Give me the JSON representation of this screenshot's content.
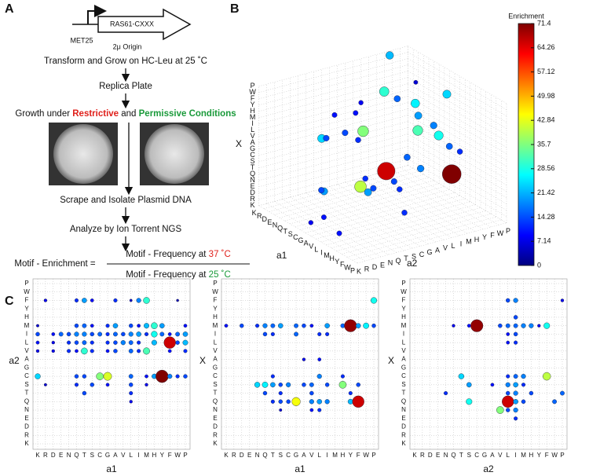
{
  "panel_a": {
    "label": "A",
    "promoter": "MET25",
    "gene": "RAS61-CXXX",
    "origin": "2μ Origin",
    "step1": "Transform and Grow on HC-Leu at 25 ˚C",
    "step2": "Replica Plate",
    "growth": [
      "Growth under ",
      "Restrictive",
      " and ",
      "Permissive Conditions"
    ],
    "step3": "Scrape and Isolate Plasmid DNA",
    "step4": "Analyze by Ion Torrent NGS",
    "equation": {
      "lhs": "Motif - Enrichment =",
      "numerator": [
        "Motif - Frequency at ",
        "37 ˚C"
      ],
      "denominator": [
        "Motif - Frequency at ",
        "25 ˚C"
      ]
    }
  },
  "chart_data": [
    {
      "type": "bubble3d",
      "label": "B",
      "categories": [
        "K",
        "R",
        "D",
        "E",
        "N",
        "Q",
        "T",
        "S",
        "C",
        "G",
        "A",
        "V",
        "L",
        "I",
        "M",
        "H",
        "Y",
        "F",
        "W",
        "P"
      ],
      "axis_labels": {
        "a1": "a1",
        "a2": "a2",
        "x": "X"
      },
      "points": [
        [
          "Y",
          "M",
          "C",
          71.4
        ],
        [
          "F",
          "Q",
          "L",
          66
        ],
        [
          "G",
          "S",
          "Q",
          40
        ],
        [
          "T",
          "L",
          "F",
          30
        ],
        [
          "M",
          "V",
          "H",
          32
        ],
        [
          "C",
          "C",
          "I",
          36
        ],
        [
          "K",
          "C",
          "C",
          24
        ],
        [
          "H",
          "I",
          "M",
          28
        ],
        [
          "Q",
          "F",
          "V",
          20
        ],
        [
          "A",
          "M",
          "T",
          18
        ],
        [
          "S",
          "I",
          "Y",
          16
        ],
        [
          "L",
          "L",
          "W",
          26
        ],
        [
          "I",
          "T",
          "S",
          14
        ],
        [
          "N",
          "A",
          "G",
          12
        ],
        [
          "E",
          "G",
          "A",
          14
        ],
        [
          "D",
          "V",
          "L",
          10
        ],
        [
          "V",
          "H",
          "I",
          18
        ],
        [
          "R",
          "Y",
          "P",
          22
        ],
        [
          "W",
          "S",
          "M",
          16
        ],
        [
          "P",
          "T",
          "T",
          12
        ],
        [
          "Q",
          "Q",
          "E",
          20
        ],
        [
          "T",
          "N",
          "N",
          14
        ],
        [
          "S",
          "D",
          "K",
          8
        ],
        [
          "C",
          "E",
          "R",
          10
        ],
        [
          "G",
          "W",
          "Y",
          24
        ],
        [
          "L",
          "A",
          "Q",
          12
        ],
        [
          "I",
          "K",
          "F",
          14
        ],
        [
          "M",
          "R",
          "D",
          10
        ],
        [
          "A",
          "P",
          "S",
          12
        ],
        [
          "V",
          "F",
          "G",
          16
        ],
        [
          "H",
          "N",
          "C",
          20
        ],
        [
          "F",
          "T",
          "A",
          14
        ],
        [
          "Y",
          "E",
          "V",
          12
        ],
        [
          "N",
          "S",
          "M",
          10
        ],
        [
          "K",
          "I",
          "L",
          8
        ],
        [
          "E",
          "W",
          "H",
          6
        ]
      ],
      "colorbar": {
        "title": "Enrichment",
        "lim": [
          0,
          71.4
        ],
        "ticks": [
          0,
          7.14,
          14.28,
          21.42,
          28.56,
          35.7,
          42.84,
          49.98,
          57.12,
          64.26,
          71.4
        ]
      }
    },
    {
      "type": "bubble",
      "label": "C",
      "x_label": "a1",
      "y_label": "a2",
      "categories": [
        "K",
        "R",
        "D",
        "E",
        "N",
        "Q",
        "T",
        "S",
        "C",
        "G",
        "A",
        "V",
        "L",
        "I",
        "M",
        "H",
        "Y",
        "F",
        "W",
        "P"
      ],
      "points": [
        [
          "R",
          "F",
          8
        ],
        [
          "Q",
          "F",
          12
        ],
        [
          "T",
          "F",
          20
        ],
        [
          "S",
          "F",
          9
        ],
        [
          "A",
          "F",
          12
        ],
        [
          "L",
          "F",
          5
        ],
        [
          "I",
          "F",
          18
        ],
        [
          "M",
          "F",
          30
        ],
        [
          "W",
          "F",
          4
        ],
        [
          "K",
          "M",
          6
        ],
        [
          "Q",
          "M",
          14
        ],
        [
          "T",
          "M",
          16
        ],
        [
          "S",
          "M",
          10
        ],
        [
          "G",
          "M",
          12
        ],
        [
          "A",
          "M",
          20
        ],
        [
          "L",
          "M",
          14
        ],
        [
          "I",
          "M",
          10
        ],
        [
          "M",
          "M",
          22
        ],
        [
          "H",
          "M",
          30
        ],
        [
          "Y",
          "M",
          20
        ],
        [
          "P",
          "M",
          10
        ],
        [
          "K",
          "I",
          14
        ],
        [
          "D",
          "I",
          10
        ],
        [
          "E",
          "I",
          16
        ],
        [
          "N",
          "I",
          14
        ],
        [
          "Q",
          "I",
          18
        ],
        [
          "T",
          "I",
          18
        ],
        [
          "S",
          "I",
          14
        ],
        [
          "C",
          "I",
          16
        ],
        [
          "G",
          "I",
          12
        ],
        [
          "A",
          "I",
          16
        ],
        [
          "V",
          "I",
          14
        ],
        [
          "L",
          "I",
          18
        ],
        [
          "I",
          "I",
          20
        ],
        [
          "M",
          "I",
          12
        ],
        [
          "H",
          "I",
          28
        ],
        [
          "Y",
          "I",
          16
        ],
        [
          "F",
          "I",
          10
        ],
        [
          "W",
          "I",
          16
        ],
        [
          "P",
          "I",
          20
        ],
        [
          "K",
          "L",
          10
        ],
        [
          "D",
          "L",
          8
        ],
        [
          "N",
          "L",
          12
        ],
        [
          "Q",
          "L",
          14
        ],
        [
          "T",
          "L",
          16
        ],
        [
          "S",
          "L",
          12
        ],
        [
          "G",
          "L",
          12
        ],
        [
          "A",
          "L",
          14
        ],
        [
          "V",
          "L",
          18
        ],
        [
          "L",
          "L",
          16
        ],
        [
          "I",
          "L",
          12
        ],
        [
          "H",
          "L",
          22
        ],
        [
          "F",
          "L",
          66
        ],
        [
          "W",
          "L",
          14
        ],
        [
          "P",
          "L",
          22
        ],
        [
          "K",
          "V",
          8
        ],
        [
          "D",
          "V",
          8
        ],
        [
          "N",
          "V",
          12
        ],
        [
          "Q",
          "V",
          10
        ],
        [
          "T",
          "V",
          30
        ],
        [
          "S",
          "V",
          12
        ],
        [
          "G",
          "V",
          10
        ],
        [
          "A",
          "V",
          14
        ],
        [
          "L",
          "V",
          16
        ],
        [
          "I",
          "V",
          12
        ],
        [
          "M",
          "V",
          32
        ],
        [
          "F",
          "V",
          10
        ],
        [
          "P",
          "V",
          12
        ],
        [
          "K",
          "C",
          24
        ],
        [
          "Q",
          "C",
          14
        ],
        [
          "T",
          "C",
          14
        ],
        [
          "C",
          "C",
          36
        ],
        [
          "G",
          "C",
          42
        ],
        [
          "L",
          "C",
          16
        ],
        [
          "M",
          "C",
          10
        ],
        [
          "H",
          "C",
          20
        ],
        [
          "Y",
          "C",
          71.4
        ],
        [
          "F",
          "C",
          18
        ],
        [
          "W",
          "C",
          12
        ],
        [
          "P",
          "C",
          14
        ],
        [
          "R",
          "S",
          6
        ],
        [
          "Q",
          "S",
          12
        ],
        [
          "S",
          "S",
          14
        ],
        [
          "G",
          "S",
          10
        ],
        [
          "L",
          "S",
          14
        ],
        [
          "M",
          "S",
          8
        ],
        [
          "T",
          "T",
          14
        ],
        [
          "L",
          "T",
          12
        ],
        [
          "L",
          "Q",
          8
        ]
      ]
    },
    {
      "type": "bubble",
      "x_label": "a1",
      "y_label": "X",
      "categories": [
        "K",
        "R",
        "D",
        "E",
        "N",
        "Q",
        "T",
        "S",
        "C",
        "G",
        "A",
        "V",
        "L",
        "I",
        "M",
        "H",
        "Y",
        "F",
        "W",
        "P"
      ],
      "points": [
        [
          "P",
          "F",
          28
        ],
        [
          "K",
          "M",
          10
        ],
        [
          "D",
          "M",
          14
        ],
        [
          "N",
          "M",
          12
        ],
        [
          "Q",
          "M",
          18
        ],
        [
          "T",
          "M",
          16
        ],
        [
          "S",
          "M",
          20
        ],
        [
          "G",
          "M",
          16
        ],
        [
          "A",
          "M",
          14
        ],
        [
          "V",
          "M",
          10
        ],
        [
          "I",
          "M",
          20
        ],
        [
          "H",
          "M",
          16
        ],
        [
          "Y",
          "M",
          70
        ],
        [
          "F",
          "M",
          20
        ],
        [
          "W",
          "M",
          26
        ],
        [
          "P",
          "M",
          14
        ],
        [
          "Q",
          "I",
          14
        ],
        [
          "T",
          "I",
          12
        ],
        [
          "G",
          "I",
          16
        ],
        [
          "L",
          "I",
          12
        ],
        [
          "I",
          "I",
          12
        ],
        [
          "A",
          "A",
          8
        ],
        [
          "L",
          "A",
          10
        ],
        [
          "T",
          "C",
          12
        ],
        [
          "L",
          "C",
          18
        ],
        [
          "H",
          "C",
          12
        ],
        [
          "N",
          "S",
          24
        ],
        [
          "Q",
          "S",
          26
        ],
        [
          "T",
          "S",
          20
        ],
        [
          "S",
          "S",
          14
        ],
        [
          "C",
          "S",
          18
        ],
        [
          "A",
          "S",
          14
        ],
        [
          "V",
          "S",
          16
        ],
        [
          "I",
          "S",
          14
        ],
        [
          "H",
          "S",
          36
        ],
        [
          "F",
          "S",
          14
        ],
        [
          "Q",
          "T",
          14
        ],
        [
          "S",
          "T",
          12
        ],
        [
          "V",
          "T",
          14
        ],
        [
          "Y",
          "T",
          12
        ],
        [
          "T",
          "Q",
          12
        ],
        [
          "S",
          "Q",
          14
        ],
        [
          "C",
          "Q",
          14
        ],
        [
          "G",
          "Q",
          44
        ],
        [
          "V",
          "Q",
          18
        ],
        [
          "L",
          "Q",
          20
        ],
        [
          "I",
          "Q",
          18
        ],
        [
          "Y",
          "Q",
          22
        ],
        [
          "F",
          "Q",
          66
        ],
        [
          "S",
          "N",
          6
        ],
        [
          "V",
          "N",
          10
        ],
        [
          "L",
          "N",
          12
        ]
      ]
    },
    {
      "type": "bubble",
      "x_label": "a2",
      "y_label": "X",
      "categories": [
        "K",
        "R",
        "D",
        "E",
        "N",
        "Q",
        "T",
        "S",
        "C",
        "G",
        "A",
        "V",
        "L",
        "I",
        "M",
        "H",
        "Y",
        "F",
        "W",
        "P"
      ],
      "points": [
        [
          "L",
          "F",
          14
        ],
        [
          "I",
          "F",
          18
        ],
        [
          "P",
          "F",
          8
        ],
        [
          "I",
          "H",
          14
        ],
        [
          "Q",
          "M",
          8
        ],
        [
          "S",
          "M",
          10
        ],
        [
          "C",
          "M",
          70
        ],
        [
          "V",
          "M",
          14
        ],
        [
          "L",
          "M",
          16
        ],
        [
          "I",
          "M",
          16
        ],
        [
          "M",
          "M",
          18
        ],
        [
          "H",
          "M",
          18
        ],
        [
          "Y",
          "M",
          8
        ],
        [
          "F",
          "M",
          28
        ],
        [
          "L",
          "I",
          10
        ],
        [
          "I",
          "I",
          14
        ],
        [
          "L",
          "L",
          10
        ],
        [
          "I",
          "L",
          12
        ],
        [
          "T",
          "C",
          24
        ],
        [
          "L",
          "C",
          12
        ],
        [
          "I",
          "C",
          16
        ],
        [
          "M",
          "C",
          18
        ],
        [
          "F",
          "C",
          40
        ],
        [
          "S",
          "S",
          20
        ],
        [
          "A",
          "S",
          10
        ],
        [
          "L",
          "S",
          18
        ],
        [
          "I",
          "S",
          20
        ],
        [
          "M",
          "S",
          12
        ],
        [
          "N",
          "T",
          12
        ],
        [
          "L",
          "T",
          14
        ],
        [
          "I",
          "T",
          18
        ],
        [
          "H",
          "T",
          14
        ],
        [
          "P",
          "T",
          16
        ],
        [
          "S",
          "Q",
          28
        ],
        [
          "L",
          "Q",
          66
        ],
        [
          "I",
          "Q",
          20
        ],
        [
          "M",
          "Q",
          14
        ],
        [
          "W",
          "Q",
          16
        ],
        [
          "V",
          "N",
          36
        ],
        [
          "L",
          "N",
          14
        ],
        [
          "I",
          "N",
          18
        ],
        [
          "I",
          "E",
          12
        ]
      ]
    }
  ]
}
